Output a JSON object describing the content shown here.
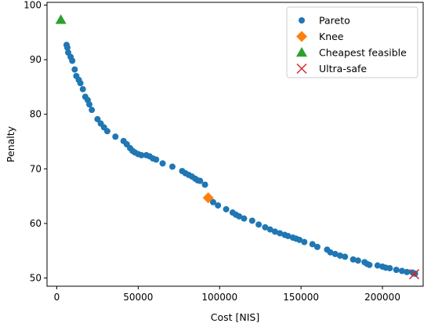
{
  "chart_data": {
    "type": "scatter",
    "title": "",
    "xlabel": "Cost [NIS]",
    "ylabel": "Penalty",
    "xlim": [
      -6000,
      225000
    ],
    "ylim": [
      48.5,
      100.5
    ],
    "xticks": [
      0,
      50000,
      100000,
      150000,
      200000
    ],
    "yticks": [
      50,
      60,
      70,
      80,
      90,
      100
    ],
    "grid": false,
    "legend_position": "top-right",
    "series": [
      {
        "name": "Pareto",
        "marker": "circle",
        "color": "#1f77b4",
        "points": [
          [
            6000,
            92.7
          ],
          [
            6500,
            92.2
          ],
          [
            7000,
            91.3
          ],
          [
            8500,
            90.5
          ],
          [
            9500,
            89.8
          ],
          [
            11000,
            88.2
          ],
          [
            12000,
            87.0
          ],
          [
            13500,
            86.3
          ],
          [
            14500,
            85.7
          ],
          [
            16000,
            84.6
          ],
          [
            17500,
            83.2
          ],
          [
            19000,
            82.6
          ],
          [
            20000,
            81.8
          ],
          [
            21500,
            80.8
          ],
          [
            25000,
            79.1
          ],
          [
            27000,
            78.3
          ],
          [
            29000,
            77.6
          ],
          [
            31000,
            76.9
          ],
          [
            36000,
            75.9
          ],
          [
            41000,
            75.1
          ],
          [
            43000,
            74.5
          ],
          [
            45000,
            73.8
          ],
          [
            46500,
            73.3
          ],
          [
            48000,
            73.0
          ],
          [
            50000,
            72.7
          ],
          [
            52000,
            72.5
          ],
          [
            55000,
            72.5
          ],
          [
            57000,
            72.3
          ],
          [
            59000,
            71.9
          ],
          [
            61000,
            71.7
          ],
          [
            65000,
            71.0
          ],
          [
            71000,
            70.4
          ],
          [
            77000,
            69.6
          ],
          [
            79000,
            69.2
          ],
          [
            81000,
            68.9
          ],
          [
            83000,
            68.6
          ],
          [
            85000,
            68.2
          ],
          [
            86500,
            67.9
          ],
          [
            88000,
            67.8
          ],
          [
            91000,
            67.1
          ],
          [
            96000,
            63.9
          ],
          [
            99000,
            63.3
          ],
          [
            104000,
            62.6
          ],
          [
            108000,
            62.0
          ],
          [
            110000,
            61.6
          ],
          [
            112000,
            61.3
          ],
          [
            115000,
            60.9
          ],
          [
            120000,
            60.5
          ],
          [
            124000,
            59.8
          ],
          [
            128000,
            59.3
          ],
          [
            131000,
            58.9
          ],
          [
            134000,
            58.5
          ],
          [
            137000,
            58.2
          ],
          [
            140000,
            57.9
          ],
          [
            142000,
            57.7
          ],
          [
            145000,
            57.4
          ],
          [
            147000,
            57.2
          ],
          [
            149000,
            57.0
          ],
          [
            152000,
            56.6
          ],
          [
            157000,
            56.2
          ],
          [
            160000,
            55.7
          ],
          [
            166000,
            55.2
          ],
          [
            168000,
            54.7
          ],
          [
            171000,
            54.4
          ],
          [
            174000,
            54.1
          ],
          [
            177000,
            53.9
          ],
          [
            182000,
            53.4
          ],
          [
            185000,
            53.2
          ],
          [
            189000,
            52.9
          ],
          [
            190500,
            52.6
          ],
          [
            192000,
            52.4
          ],
          [
            197000,
            52.3
          ],
          [
            200000,
            52.1
          ],
          [
            202000,
            51.9
          ],
          [
            204500,
            51.8
          ],
          [
            208500,
            51.5
          ],
          [
            212000,
            51.3
          ],
          [
            215000,
            51.1
          ],
          [
            218500,
            51.0
          ],
          [
            220000,
            50.8
          ]
        ]
      },
      {
        "name": "Knee",
        "marker": "diamond",
        "color": "#ff7f0e",
        "points": [
          [
            93000,
            64.7
          ]
        ]
      },
      {
        "name": "Cheapest feasible",
        "marker": "triangle",
        "color": "#2ca02c",
        "points": [
          [
            2500,
            97.3
          ]
        ]
      },
      {
        "name": "Ultra-safe",
        "marker": "x",
        "color": "#d62728",
        "points": [
          [
            219500,
            50.7
          ]
        ]
      }
    ]
  }
}
